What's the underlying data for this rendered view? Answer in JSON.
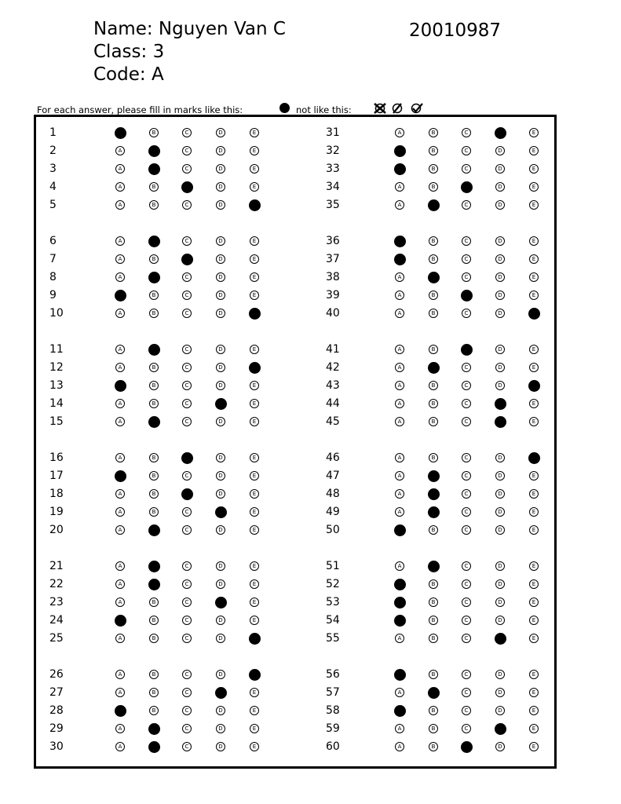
{
  "header": {
    "name_label": "Name: Nguyen Van C",
    "class_label": "Class: 3",
    "code_label": "Code: A",
    "student_id": "20010987"
  },
  "instructions": {
    "fill_text": "For each answer, please fill in marks like this:",
    "not_like_text": "not like this:",
    "bad_mark_icons": [
      "x-mark-icon",
      "slash-mark-icon",
      "check-mark-icon"
    ]
  },
  "options": [
    "A",
    "B",
    "C",
    "D",
    "E"
  ],
  "answers": [
    {
      "q": 1,
      "a": "A"
    },
    {
      "q": 2,
      "a": "B"
    },
    {
      "q": 3,
      "a": "B"
    },
    {
      "q": 4,
      "a": "C"
    },
    {
      "q": 5,
      "a": "E"
    },
    {
      "q": 6,
      "a": "B"
    },
    {
      "q": 7,
      "a": "C"
    },
    {
      "q": 8,
      "a": "B"
    },
    {
      "q": 9,
      "a": "A"
    },
    {
      "q": 10,
      "a": "E"
    },
    {
      "q": 11,
      "a": "B"
    },
    {
      "q": 12,
      "a": "E"
    },
    {
      "q": 13,
      "a": "A"
    },
    {
      "q": 14,
      "a": "D"
    },
    {
      "q": 15,
      "a": "B"
    },
    {
      "q": 16,
      "a": "C"
    },
    {
      "q": 17,
      "a": "A"
    },
    {
      "q": 18,
      "a": "C"
    },
    {
      "q": 19,
      "a": "D"
    },
    {
      "q": 20,
      "a": "B"
    },
    {
      "q": 21,
      "a": "B"
    },
    {
      "q": 22,
      "a": "B"
    },
    {
      "q": 23,
      "a": "D"
    },
    {
      "q": 24,
      "a": "A"
    },
    {
      "q": 25,
      "a": "E"
    },
    {
      "q": 26,
      "a": "E"
    },
    {
      "q": 27,
      "a": "D"
    },
    {
      "q": 28,
      "a": "A"
    },
    {
      "q": 29,
      "a": "B"
    },
    {
      "q": 30,
      "a": "B"
    },
    {
      "q": 31,
      "a": "D"
    },
    {
      "q": 32,
      "a": "A"
    },
    {
      "q": 33,
      "a": "A"
    },
    {
      "q": 34,
      "a": "C"
    },
    {
      "q": 35,
      "a": "B"
    },
    {
      "q": 36,
      "a": "A"
    },
    {
      "q": 37,
      "a": "A"
    },
    {
      "q": 38,
      "a": "B"
    },
    {
      "q": 39,
      "a": "C"
    },
    {
      "q": 40,
      "a": "E"
    },
    {
      "q": 41,
      "a": "C"
    },
    {
      "q": 42,
      "a": "B"
    },
    {
      "q": 43,
      "a": "E"
    },
    {
      "q": 44,
      "a": "D"
    },
    {
      "q": 45,
      "a": "D"
    },
    {
      "q": 46,
      "a": "E"
    },
    {
      "q": 47,
      "a": "B"
    },
    {
      "q": 48,
      "a": "B"
    },
    {
      "q": 49,
      "a": "B"
    },
    {
      "q": 50,
      "a": "A"
    },
    {
      "q": 51,
      "a": "B"
    },
    {
      "q": 52,
      "a": "A"
    },
    {
      "q": 53,
      "a": "A"
    },
    {
      "q": 54,
      "a": "A"
    },
    {
      "q": 55,
      "a": "D"
    },
    {
      "q": 56,
      "a": "A"
    },
    {
      "q": 57,
      "a": "B"
    },
    {
      "q": 58,
      "a": "A"
    },
    {
      "q": 59,
      "a": "D"
    },
    {
      "q": 60,
      "a": "C"
    }
  ]
}
